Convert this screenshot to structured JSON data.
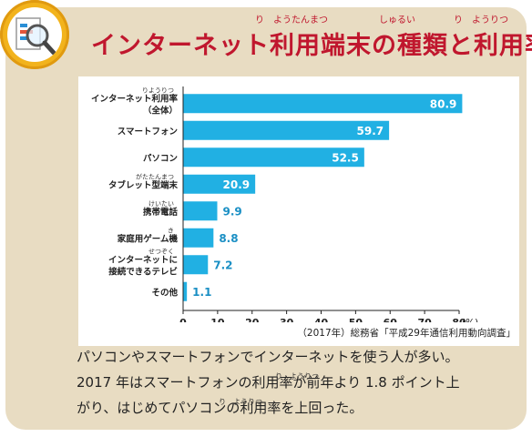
{
  "title": {
    "text": "インターネット利用端末の種類と利用率",
    "ruby": [
      "り　ようたんまつ",
      "しゅるい",
      "り　ようりつ"
    ]
  },
  "icon": "magnifier-document-icon",
  "colors": {
    "bar": "#21b0e3",
    "title": "#c0172e",
    "panel": "#e8dcc2",
    "badge": "#f2b31c"
  },
  "chart_data": {
    "type": "bar",
    "orientation": "horizontal",
    "categories": [
      [
        "インターネット利用率",
        "（全体）"
      ],
      [
        "スマートフォン"
      ],
      [
        "パソコン"
      ],
      [
        "タブレット型端末"
      ],
      [
        "携帯電話"
      ],
      [
        "家庭用ゲーム機"
      ],
      [
        "インターネットに",
        "接続できるテレビ"
      ],
      [
        "その他"
      ]
    ],
    "category_ruby": [
      "りようりつ",
      "",
      "",
      "がたたんまつ",
      "けいたい",
      "き",
      "せつぞく",
      ""
    ],
    "values": [
      80.9,
      59.7,
      52.5,
      20.9,
      9.9,
      8.8,
      7.2,
      1.1
    ],
    "xticks": [
      0,
      10,
      20,
      30,
      40,
      50,
      60,
      70,
      80
    ],
    "xlim": [
      0,
      80
    ],
    "unit": "(%)",
    "grid": false,
    "legend": "none"
  },
  "source": "（2017年）総務省「平成29年通信利用動向調査」",
  "caption": {
    "lines": [
      "パソコンやスマートフォンでインターネットを使う人が多い。",
      "2017 年はスマートフォンの利用率が前年より 1.8 ポイント上",
      "がり、はじめてパソコンの利用率を上回った。"
    ],
    "ruby": [
      "り　ようりつ",
      "り　ようりつ"
    ]
  }
}
